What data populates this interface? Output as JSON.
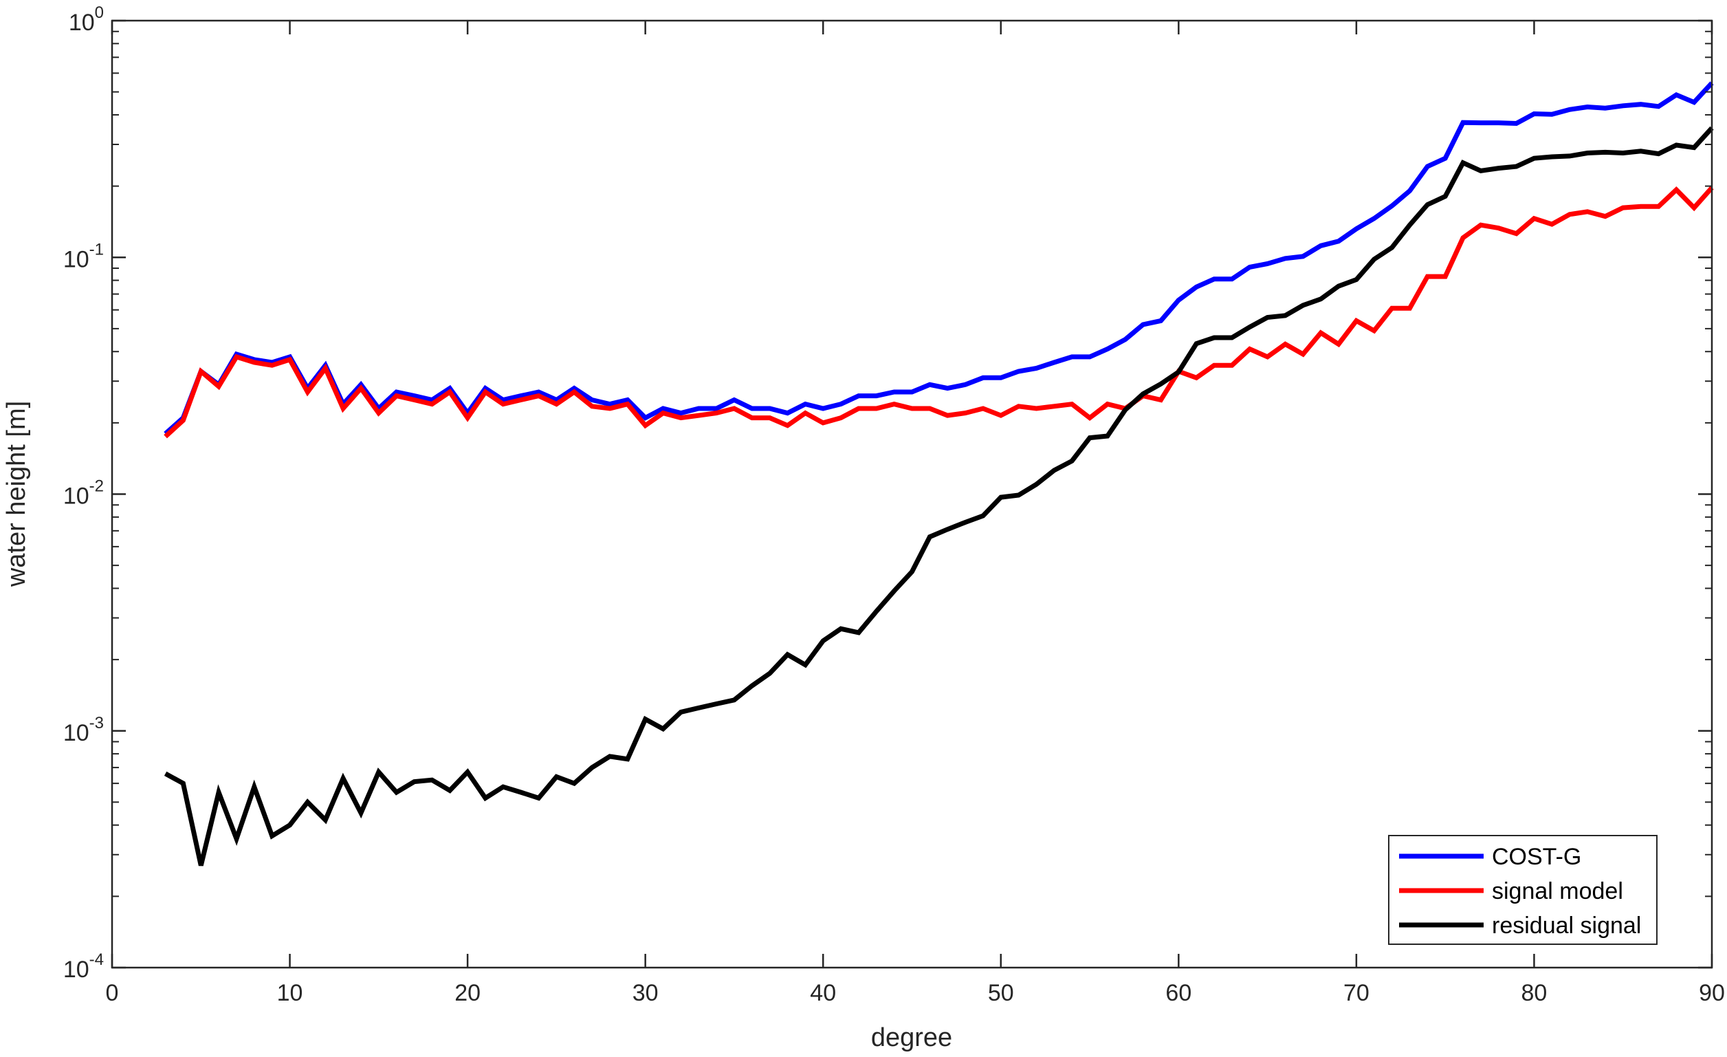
{
  "chart_data": {
    "type": "line",
    "xlabel": "degree",
    "ylabel": "water height [m]",
    "yscale": "log",
    "xlim": [
      0,
      90
    ],
    "ylim": [
      0.0001,
      1
    ],
    "xticks": [
      0,
      10,
      20,
      30,
      40,
      50,
      60,
      70,
      80,
      90
    ],
    "xtick_labels": [
      "0",
      "10",
      "20",
      "30",
      "40",
      "50",
      "60",
      "70",
      "80",
      "90"
    ],
    "yticks": [
      0.0001,
      0.001,
      0.01,
      0.1,
      1
    ],
    "ytick_labels": [
      {
        "base": "10",
        "exp": "-4"
      },
      {
        "base": "10",
        "exp": "-3"
      },
      {
        "base": "10",
        "exp": "-2"
      },
      {
        "base": "10",
        "exp": "-1"
      },
      {
        "base": "10",
        "exp": "0"
      }
    ],
    "grid": false,
    "legend_position": "bottom-right",
    "x": [
      3,
      4,
      5,
      6,
      7,
      8,
      9,
      10,
      11,
      12,
      13,
      14,
      15,
      16,
      17,
      18,
      19,
      20,
      21,
      22,
      23,
      24,
      25,
      26,
      27,
      28,
      29,
      30,
      31,
      32,
      33,
      34,
      35,
      36,
      37,
      38,
      39,
      40,
      41,
      42,
      43,
      44,
      45,
      46,
      47,
      48,
      49,
      50,
      51,
      52,
      53,
      54,
      55,
      56,
      57,
      58,
      59,
      60,
      61,
      62,
      63,
      64,
      65,
      66,
      67,
      68,
      69,
      70,
      71,
      72,
      73,
      74,
      75,
      76,
      77,
      78,
      79,
      80,
      81,
      82,
      83,
      84,
      85,
      86,
      87,
      88,
      89,
      90
    ],
    "series": [
      {
        "name": "COST-G",
        "color": "#0000ff",
        "values": [
          0.018,
          0.021,
          0.033,
          0.029,
          0.039,
          0.037,
          0.036,
          0.038,
          0.028,
          0.035,
          0.024,
          0.029,
          0.023,
          0.027,
          0.026,
          0.025,
          0.028,
          0.022,
          0.028,
          0.025,
          0.026,
          0.027,
          0.025,
          0.028,
          0.025,
          0.024,
          0.025,
          0.021,
          0.023,
          0.022,
          0.023,
          0.023,
          0.025,
          0.023,
          0.023,
          0.022,
          0.024,
          0.023,
          0.024,
          0.026,
          0.026,
          0.027,
          0.027,
          0.029,
          0.028,
          0.029,
          0.031,
          0.031,
          0.033,
          0.034,
          0.036,
          0.038,
          0.038,
          0.041,
          0.045,
          0.052,
          0.054,
          0.066,
          0.075,
          0.081,
          0.081,
          0.091,
          0.094,
          0.099,
          0.101,
          0.112,
          0.117,
          0.132,
          0.146,
          0.165,
          0.191,
          0.242,
          0.262,
          0.371,
          0.37,
          0.37,
          0.368,
          0.404,
          0.402,
          0.421,
          0.432,
          0.427,
          0.437,
          0.443,
          0.434,
          0.486,
          0.452,
          0.545
        ]
      },
      {
        "name": "signal model",
        "color": "#ff0000",
        "values": [
          0.0175,
          0.0205,
          0.033,
          0.0285,
          0.038,
          0.036,
          0.035,
          0.037,
          0.027,
          0.034,
          0.023,
          0.028,
          0.022,
          0.026,
          0.025,
          0.024,
          0.027,
          0.021,
          0.027,
          0.024,
          0.025,
          0.026,
          0.024,
          0.027,
          0.0235,
          0.023,
          0.024,
          0.0195,
          0.022,
          0.021,
          0.0215,
          0.022,
          0.023,
          0.021,
          0.021,
          0.0195,
          0.022,
          0.02,
          0.021,
          0.023,
          0.023,
          0.024,
          0.023,
          0.023,
          0.0215,
          0.022,
          0.023,
          0.0215,
          0.0235,
          0.023,
          0.0235,
          0.024,
          0.021,
          0.024,
          0.023,
          0.026,
          0.025,
          0.033,
          0.031,
          0.035,
          0.035,
          0.041,
          0.038,
          0.043,
          0.039,
          0.048,
          0.043,
          0.054,
          0.049,
          0.061,
          0.061,
          0.083,
          0.083,
          0.121,
          0.137,
          0.133,
          0.126,
          0.146,
          0.138,
          0.152,
          0.156,
          0.149,
          0.162,
          0.164,
          0.164,
          0.193,
          0.162,
          0.197
        ]
      },
      {
        "name": "residual signal",
        "color": "#000000",
        "values": [
          0.00066,
          0.0006,
          0.00027,
          0.00055,
          0.00035,
          0.00058,
          0.00036,
          0.0004,
          0.0005,
          0.00042,
          0.00063,
          0.00045,
          0.00067,
          0.00055,
          0.00061,
          0.00062,
          0.00056,
          0.00067,
          0.00052,
          0.00058,
          0.00055,
          0.00052,
          0.00064,
          0.0006,
          0.0007,
          0.00078,
          0.00076,
          0.00112,
          0.00102,
          0.0012,
          0.00125,
          0.0013,
          0.00135,
          0.00155,
          0.00175,
          0.0021,
          0.0019,
          0.0024,
          0.0027,
          0.0026,
          0.0032,
          0.0039,
          0.0047,
          0.0066,
          0.0071,
          0.0076,
          0.0081,
          0.0097,
          0.0099,
          0.011,
          0.0126,
          0.0138,
          0.0173,
          0.0176,
          0.0227,
          0.0265,
          0.0292,
          0.0328,
          0.0432,
          0.0458,
          0.0458,
          0.0508,
          0.0558,
          0.0568,
          0.0627,
          0.0667,
          0.0756,
          0.0806,
          0.0982,
          0.11,
          0.137,
          0.167,
          0.181,
          0.251,
          0.232,
          0.238,
          0.242,
          0.262,
          0.266,
          0.268,
          0.276,
          0.278,
          0.276,
          0.281,
          0.274,
          0.298,
          0.291,
          0.352
        ]
      }
    ]
  }
}
